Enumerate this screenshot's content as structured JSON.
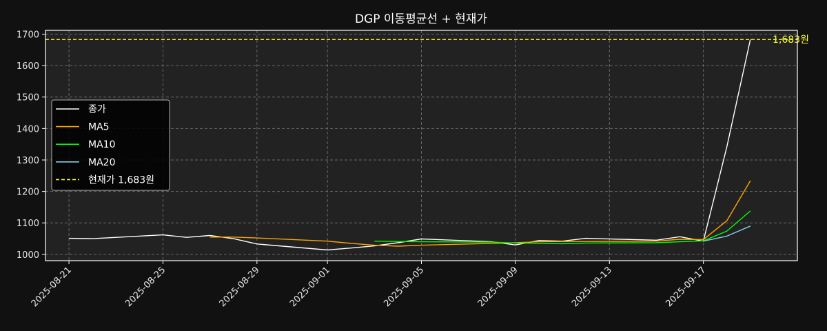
{
  "chart_data": {
    "type": "line",
    "title": "DGP 이동평균선 + 현재가",
    "xlabel": "",
    "ylabel": "",
    "x_ticks": [
      "2025-08-21",
      "2025-08-25",
      "2025-08-29",
      "2025-09-01",
      "2025-09-05",
      "2025-09-09",
      "2025-09-13",
      "2025-09-17"
    ],
    "y_ticks": [
      1000,
      1100,
      1200,
      1300,
      1400,
      1500,
      1600,
      1700
    ],
    "xlim": [
      "2025-08-20",
      "2025-09-21"
    ],
    "ylim": [
      980,
      1712
    ],
    "grid": true,
    "legend_position": "center-left",
    "background": "#222222",
    "series": [
      {
        "name": "종가",
        "color": "#ffffff",
        "points": [
          [
            "2025-08-21",
            1051
          ],
          [
            "2025-08-22",
            1050
          ],
          [
            "2025-08-25",
            1062
          ],
          [
            "2025-08-26",
            1054
          ],
          [
            "2025-08-27",
            1060
          ],
          [
            "2025-08-28",
            1050
          ],
          [
            "2025-08-29",
            1033
          ],
          [
            "2025-09-01",
            1014
          ],
          [
            "2025-09-02",
            1020
          ],
          [
            "2025-09-03",
            1027
          ],
          [
            "2025-09-04",
            1037
          ],
          [
            "2025-09-05",
            1049
          ],
          [
            "2025-09-08",
            1040
          ],
          [
            "2025-09-09",
            1030
          ],
          [
            "2025-09-10",
            1044
          ],
          [
            "2025-09-11",
            1042
          ],
          [
            "2025-09-12",
            1051
          ],
          [
            "2025-09-15",
            1045
          ],
          [
            "2025-09-16",
            1056
          ],
          [
            "2025-09-17",
            1042
          ],
          [
            "2025-09-18",
            1342
          ],
          [
            "2025-09-19",
            1683
          ]
        ]
      },
      {
        "name": "MA5",
        "color": "#ffa500",
        "points": [
          [
            "2025-08-27",
            1055
          ],
          [
            "2025-08-28",
            1055
          ],
          [
            "2025-08-29",
            1052
          ],
          [
            "2025-09-01",
            1042
          ],
          [
            "2025-09-02",
            1035
          ],
          [
            "2025-09-03",
            1029
          ],
          [
            "2025-09-04",
            1026
          ],
          [
            "2025-09-05",
            1029
          ],
          [
            "2025-09-08",
            1035
          ],
          [
            "2025-09-09",
            1037
          ],
          [
            "2025-09-10",
            1040
          ],
          [
            "2025-09-11",
            1041
          ],
          [
            "2025-09-12",
            1041
          ],
          [
            "2025-09-15",
            1042
          ],
          [
            "2025-09-16",
            1048
          ],
          [
            "2025-09-17",
            1047
          ],
          [
            "2025-09-18",
            1107
          ],
          [
            "2025-09-19",
            1234
          ]
        ]
      },
      {
        "name": "MA10",
        "color": "#00ff00",
        "points": [
          [
            "2025-09-03",
            1042
          ],
          [
            "2025-09-04",
            1041
          ],
          [
            "2025-09-05",
            1040
          ],
          [
            "2025-09-08",
            1039
          ],
          [
            "2025-09-09",
            1036
          ],
          [
            "2025-09-10",
            1035
          ],
          [
            "2025-09-11",
            1034
          ],
          [
            "2025-09-12",
            1036
          ],
          [
            "2025-09-15",
            1037
          ],
          [
            "2025-09-16",
            1040
          ],
          [
            "2025-09-17",
            1043
          ],
          [
            "2025-09-18",
            1074
          ],
          [
            "2025-09-19",
            1138
          ]
        ]
      },
      {
        "name": "MA20",
        "color": "#87ceeb",
        "points": [
          [
            "2025-09-17",
            1042
          ],
          [
            "2025-09-18",
            1058
          ],
          [
            "2025-09-19",
            1090
          ]
        ]
      }
    ],
    "reference_lines": [
      {
        "name": "현재가 1,683원",
        "value": 1683,
        "color": "#ffff33",
        "style": "dashed",
        "label": "1,683원"
      }
    ]
  }
}
